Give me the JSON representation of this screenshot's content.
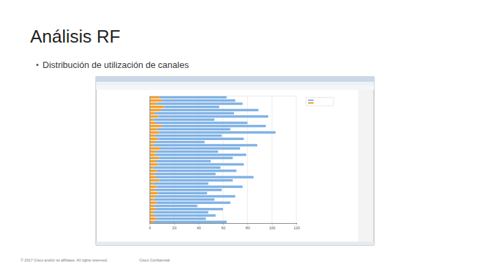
{
  "slide": {
    "title": "Análisis RF",
    "bullets": [
      "Distribución de utilización de canales"
    ],
    "footer": [
      "© 2017 Cisco and/or its affiliates. All rights reserved.",
      "Cisco Confidential"
    ]
  },
  "chart_data": {
    "type": "bar",
    "orientation": "horizontal",
    "stacked": true,
    "grid": true,
    "tick_labels": "x",
    "categories": [
      null,
      null,
      null,
      null,
      null,
      null,
      null,
      null,
      null,
      null,
      null,
      null,
      null,
      null,
      null,
      null,
      null,
      null,
      null,
      null,
      null,
      null,
      null,
      null,
      null,
      null,
      null,
      null,
      null,
      null,
      null,
      null,
      null,
      null,
      null,
      null,
      null,
      null,
      null,
      null
    ],
    "series": [
      {
        "color": "#f0a030",
        "values": [
          8,
          10,
          6,
          12,
          9,
          4,
          7,
          3,
          5,
          10,
          6,
          8,
          4,
          7,
          5,
          3,
          9,
          6,
          4,
          8,
          5,
          7,
          3,
          6,
          4,
          5,
          8,
          3,
          6,
          4,
          7,
          5,
          3,
          6,
          4,
          5,
          3,
          4,
          6,
          3
        ]
      },
      {
        "color": "#7fb2e5",
        "values": [
          55,
          60,
          70,
          45,
          80,
          65,
          90,
          50,
          75,
          85,
          60,
          95,
          55,
          70,
          40,
          85,
          65,
          50,
          75,
          60,
          45,
          70,
          55,
          65,
          50,
          80,
          60,
          45,
          70,
          55,
          40,
          65,
          50,
          60,
          35,
          55,
          45,
          50,
          40,
          60
        ]
      }
    ],
    "xlim": [
      0,
      120
    ],
    "xticks": [
      0,
      20,
      40,
      60,
      80,
      100,
      120
    ]
  }
}
